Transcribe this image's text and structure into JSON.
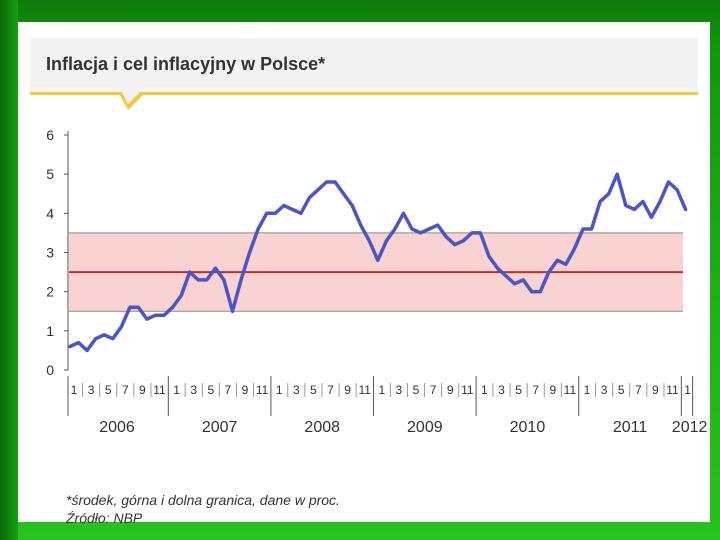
{
  "slide": {
    "title": "Inflacja i cel inflacyjny w Polsce*",
    "footnote": "*środek, górna i dolna granica, dane w proc.",
    "source": "Źródło: NBP"
  },
  "colors": {
    "background_green": "#1fa51a",
    "line": "#4a55c8",
    "target_line": "#c0302a",
    "band": "#f9d2d2",
    "band_border": "#8a8a8a",
    "accent": "#f5c842"
  },
  "chart_data": {
    "type": "line",
    "title": "Inflacja i cel inflacyjny w Polsce*",
    "ylim": [
      0,
      6
    ],
    "yticks": [
      "0",
      "1",
      "2",
      "3",
      "4",
      "5",
      "6"
    ],
    "target": {
      "center": 2.5,
      "lower": 1.5,
      "upper": 3.5
    },
    "years": [
      "2006",
      "2007",
      "2008",
      "2009",
      "2010",
      "2011",
      "2012"
    ],
    "month_ticks": [
      "1",
      "3",
      "5",
      "7",
      "9",
      "11"
    ],
    "last_month_tick": "1",
    "series": [
      {
        "name": "Inflacja",
        "values": [
          0.6,
          0.7,
          0.5,
          0.8,
          0.9,
          0.8,
          1.1,
          1.6,
          1.6,
          1.3,
          1.4,
          1.4,
          1.6,
          1.9,
          2.5,
          2.3,
          2.3,
          2.6,
          2.3,
          1.5,
          2.3,
          3.0,
          3.6,
          4.0,
          4.0,
          4.2,
          4.1,
          4.0,
          4.4,
          4.6,
          4.8,
          4.8,
          4.5,
          4.2,
          3.7,
          3.3,
          2.8,
          3.3,
          3.6,
          4.0,
          3.6,
          3.5,
          3.6,
          3.7,
          3.4,
          3.2,
          3.3,
          3.5,
          3.5,
          2.9,
          2.6,
          2.4,
          2.2,
          2.3,
          2.0,
          2.0,
          2.5,
          2.8,
          2.7,
          3.1,
          3.6,
          3.6,
          4.3,
          4.5,
          5.0,
          4.2,
          4.1,
          4.3,
          3.9,
          4.3,
          4.8,
          4.6,
          4.1
        ]
      }
    ]
  }
}
